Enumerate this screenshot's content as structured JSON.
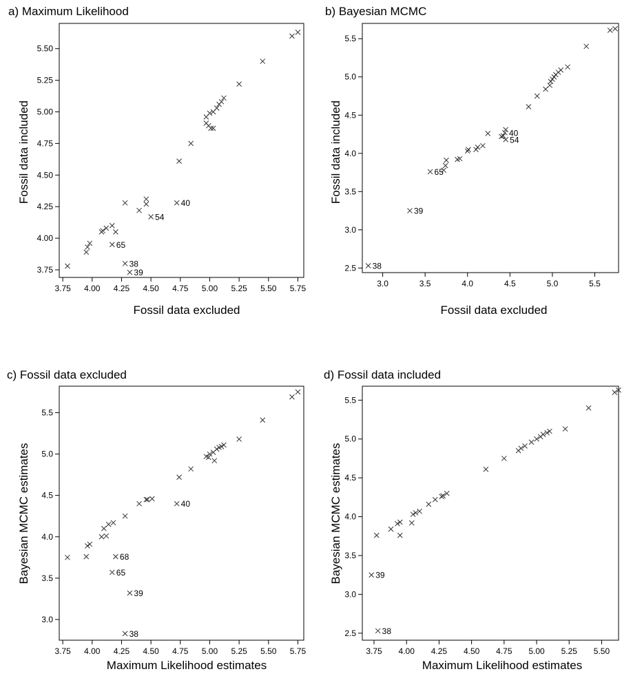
{
  "chart_data": [
    {
      "type": "scatter",
      "title": "a) Maximum Likelihood",
      "xlabel": "Fossil data excluded",
      "ylabel": "Fossil data included",
      "xlim": [
        3.72,
        5.8
      ],
      "ylim": [
        3.69,
        5.7
      ],
      "xticks": [
        "3.75",
        "4.00",
        "4.25",
        "4.50",
        "4.75",
        "5.00",
        "5.25",
        "5.50",
        "5.75"
      ],
      "yticks": [
        "3.75",
        "4.00",
        "4.25",
        "4.50",
        "4.75",
        "5.00",
        "5.25",
        "5.50"
      ],
      "points": [
        [
          3.79,
          3.78
        ],
        [
          3.95,
          3.89
        ],
        [
          3.96,
          3.93
        ],
        [
          3.98,
          3.96
        ],
        [
          4.08,
          4.05
        ],
        [
          4.09,
          4.06
        ],
        [
          4.12,
          4.08
        ],
        [
          4.17,
          4.1
        ],
        [
          4.2,
          4.05
        ],
        [
          4.28,
          4.28
        ],
        [
          4.4,
          4.22
        ],
        [
          4.46,
          4.27
        ],
        [
          4.46,
          4.31
        ],
        [
          4.74,
          4.61
        ],
        [
          4.84,
          4.75
        ],
        [
          4.97,
          4.91
        ],
        [
          4.97,
          4.96
        ],
        [
          4.99,
          4.89
        ],
        [
          5.01,
          4.87
        ],
        [
          5.03,
          4.87
        ],
        [
          5.0,
          4.99
        ],
        [
          5.03,
          5.0
        ],
        [
          5.06,
          5.03
        ],
        [
          5.08,
          5.06
        ],
        [
          5.1,
          5.08
        ],
        [
          5.12,
          5.11
        ],
        [
          5.25,
          5.22
        ],
        [
          5.45,
          5.4
        ],
        [
          5.7,
          5.6
        ],
        [
          5.75,
          5.63
        ],
        [
          4.72,
          4.28
        ],
        [
          4.5,
          4.17
        ],
        [
          4.17,
          3.95
        ],
        [
          4.28,
          3.8
        ],
        [
          4.32,
          3.73
        ]
      ],
      "annotations": [
        {
          "text": "40",
          "x": 4.72,
          "y": 4.28
        },
        {
          "text": "54",
          "x": 4.5,
          "y": 4.17
        },
        {
          "text": "65",
          "x": 4.17,
          "y": 3.95
        },
        {
          "text": "38",
          "x": 4.28,
          "y": 3.8
        },
        {
          "text": "39",
          "x": 4.32,
          "y": 3.73
        }
      ]
    },
    {
      "type": "scatter",
      "title": "b) Bayesian MCMC",
      "xlabel": "Fossil data excluded",
      "ylabel": "Fossil data included",
      "xlim": [
        2.76,
        5.78
      ],
      "ylim": [
        2.44,
        5.7
      ],
      "xticks": [
        "3.0",
        "3.5",
        "4.0",
        "4.5",
        "5.0",
        "5.5"
      ],
      "yticks": [
        "2.5",
        "3.0",
        "3.5",
        "4.0",
        "4.5",
        "5.0",
        "5.5"
      ],
      "points": [
        [
          2.83,
          2.53
        ],
        [
          3.32,
          3.25
        ],
        [
          3.56,
          3.76
        ],
        [
          3.72,
          3.78
        ],
        [
          3.74,
          3.84
        ],
        [
          3.75,
          3.91
        ],
        [
          3.88,
          3.92
        ],
        [
          3.91,
          3.93
        ],
        [
          4.0,
          4.03
        ],
        [
          4.01,
          4.05
        ],
        [
          4.1,
          4.05
        ],
        [
          4.12,
          4.08
        ],
        [
          4.18,
          4.1
        ],
        [
          4.24,
          4.26
        ],
        [
          4.4,
          4.22
        ],
        [
          4.42,
          4.23
        ],
        [
          4.44,
          4.27
        ],
        [
          4.45,
          4.31
        ],
        [
          4.45,
          4.18
        ],
        [
          4.72,
          4.61
        ],
        [
          4.82,
          4.75
        ],
        [
          4.92,
          4.84
        ],
        [
          4.97,
          4.89
        ],
        [
          4.98,
          4.94
        ],
        [
          5.0,
          4.97
        ],
        [
          5.02,
          5.0
        ],
        [
          5.04,
          5.03
        ],
        [
          5.07,
          5.06
        ],
        [
          5.1,
          5.09
        ],
        [
          5.18,
          5.13
        ],
        [
          5.4,
          5.4
        ],
        [
          5.68,
          5.61
        ],
        [
          5.74,
          5.63
        ]
      ],
      "annotations": [
        {
          "text": "38",
          "x": 2.83,
          "y": 2.53
        },
        {
          "text": "39",
          "x": 3.32,
          "y": 3.25
        },
        {
          "text": "65",
          "x": 3.56,
          "y": 3.76
        },
        {
          "text": "40",
          "x": 4.44,
          "y": 4.27
        },
        {
          "text": "54",
          "x": 4.45,
          "y": 4.18
        }
      ]
    },
    {
      "type": "scatter",
      "title": "c)  Fossil data excluded",
      "xlabel": "Maximum Likelihood estimates",
      "ylabel": "Bayesian MCMC estimates",
      "xlim": [
        3.72,
        5.8
      ],
      "ylim": [
        2.75,
        5.82
      ],
      "xticks": [
        "3.75",
        "4.00",
        "4.25",
        "4.50",
        "4.75",
        "5.00",
        "5.25",
        "5.50",
        "5.75"
      ],
      "yticks": [
        "3.0",
        "3.5",
        "4.0",
        "4.5",
        "5.0",
        "5.5"
      ],
      "points": [
        [
          3.79,
          3.75
        ],
        [
          3.95,
          3.76
        ],
        [
          3.96,
          3.89
        ],
        [
          3.98,
          3.91
        ],
        [
          4.08,
          4.0
        ],
        [
          4.1,
          4.1
        ],
        [
          4.12,
          4.01
        ],
        [
          4.14,
          4.15
        ],
        [
          4.18,
          4.17
        ],
        [
          4.28,
          4.25
        ],
        [
          4.4,
          4.4
        ],
        [
          4.46,
          4.45
        ],
        [
          4.47,
          4.45
        ],
        [
          4.51,
          4.46
        ],
        [
          4.74,
          4.72
        ],
        [
          4.84,
          4.82
        ],
        [
          4.97,
          4.97
        ],
        [
          4.99,
          4.96
        ],
        [
          5.0,
          5.0
        ],
        [
          5.03,
          5.02
        ],
        [
          5.04,
          4.92
        ],
        [
          5.06,
          5.06
        ],
        [
          5.08,
          5.08
        ],
        [
          5.1,
          5.09
        ],
        [
          5.12,
          5.11
        ],
        [
          5.25,
          5.18
        ],
        [
          5.45,
          5.41
        ],
        [
          5.7,
          5.69
        ],
        [
          5.75,
          5.75
        ],
        [
          4.72,
          4.4
        ],
        [
          4.2,
          3.76
        ],
        [
          4.17,
          3.57
        ],
        [
          4.32,
          3.32
        ],
        [
          4.28,
          2.83
        ]
      ],
      "annotations": [
        {
          "text": "40",
          "x": 4.72,
          "y": 4.4
        },
        {
          "text": "68",
          "x": 4.2,
          "y": 3.76
        },
        {
          "text": "65",
          "x": 4.17,
          "y": 3.57
        },
        {
          "text": "39",
          "x": 4.32,
          "y": 3.32
        },
        {
          "text": "38",
          "x": 4.28,
          "y": 2.83
        }
      ]
    },
    {
      "type": "scatter",
      "title": "d)  Fossil data included",
      "xlabel": "Maximum Likelihood estimates",
      "ylabel": "Bayesian MCMC estimates",
      "xlim": [
        3.66,
        5.63
      ],
      "ylim": [
        2.41,
        5.68
      ],
      "xticks": [
        "3.75",
        "4.00",
        "4.25",
        "4.50",
        "4.75",
        "5.00",
        "5.25",
        "5.50"
      ],
      "yticks": [
        "2.5",
        "3.0",
        "3.5",
        "4.0",
        "4.5",
        "5.0",
        "5.5"
      ],
      "points": [
        [
          3.73,
          3.25
        ],
        [
          3.78,
          2.53
        ],
        [
          3.77,
          3.76
        ],
        [
          3.88,
          3.84
        ],
        [
          3.93,
          3.91
        ],
        [
          3.95,
          3.93
        ],
        [
          3.95,
          3.76
        ],
        [
          4.04,
          3.92
        ],
        [
          4.05,
          4.03
        ],
        [
          4.07,
          4.05
        ],
        [
          4.1,
          4.07
        ],
        [
          4.17,
          4.16
        ],
        [
          4.22,
          4.22
        ],
        [
          4.27,
          4.26
        ],
        [
          4.28,
          4.27
        ],
        [
          4.31,
          4.3
        ],
        [
          4.61,
          4.61
        ],
        [
          4.75,
          4.75
        ],
        [
          4.86,
          4.85
        ],
        [
          4.88,
          4.88
        ],
        [
          4.91,
          4.91
        ],
        [
          4.96,
          4.96
        ],
        [
          5.0,
          5.0
        ],
        [
          5.03,
          5.03
        ],
        [
          5.05,
          5.06
        ],
        [
          5.08,
          5.08
        ],
        [
          5.1,
          5.1
        ],
        [
          5.22,
          5.13
        ],
        [
          5.4,
          5.4
        ],
        [
          5.6,
          5.6
        ],
        [
          5.63,
          5.63
        ]
      ],
      "annotations": [
        {
          "text": "39",
          "x": 3.73,
          "y": 3.25
        },
        {
          "text": "38",
          "x": 3.78,
          "y": 2.53
        }
      ]
    }
  ]
}
